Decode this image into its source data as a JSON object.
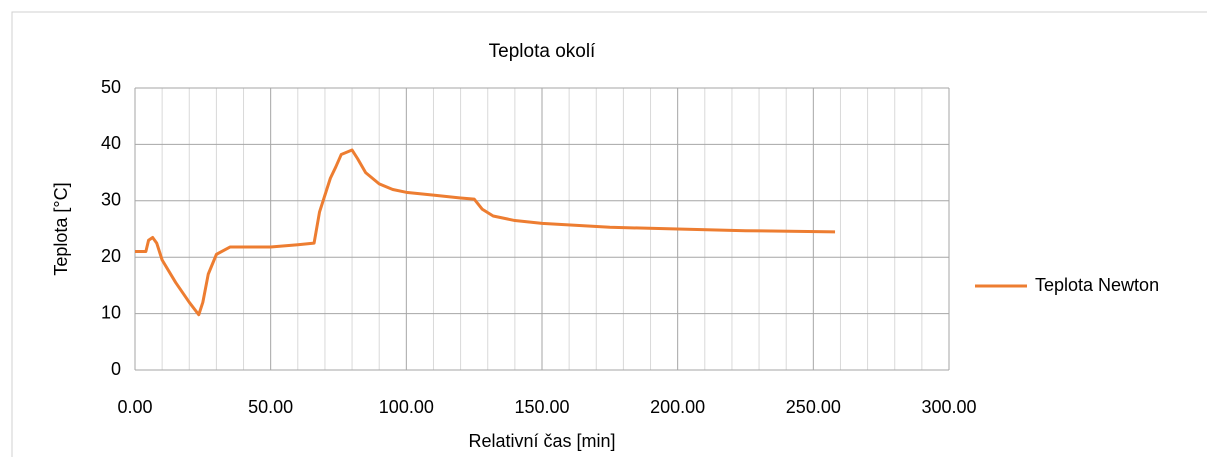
{
  "chart_data": {
    "type": "line",
    "title": "Teplota okolí",
    "x_label": "Relativní čas [min]",
    "y_label": "Teplota [°C]",
    "x": [
      0,
      4,
      5,
      6.5,
      8,
      10,
      15,
      20,
      23.5,
      25,
      27,
      30,
      35,
      40,
      50,
      60,
      66,
      68,
      72,
      74,
      76,
      80,
      82,
      85,
      90,
      95,
      100,
      110,
      120,
      125,
      128,
      132,
      140,
      150,
      175,
      200,
      225,
      258
    ],
    "series": [
      {
        "name": "Teplota Newton",
        "color": "#ed7d31",
        "values": [
          21,
          21,
          23,
          23.5,
          22.5,
          19.5,
          15.5,
          12,
          9.8,
          12,
          17,
          20.5,
          21.8,
          21.8,
          21.8,
          22.2,
          22.5,
          28,
          34,
          36,
          38.2,
          39,
          37.5,
          35,
          33,
          32,
          31.5,
          31,
          30.5,
          30.3,
          28.5,
          27.3,
          26.5,
          26,
          25.3,
          25,
          24.7,
          24.5
        ]
      }
    ],
    "xlim": [
      0,
      300
    ],
    "xticks": [
      {
        "value": 0,
        "label": "0.00"
      },
      {
        "value": 50,
        "label": "50.00"
      },
      {
        "value": 100,
        "label": "100.00"
      },
      {
        "value": 150,
        "label": "150.00"
      },
      {
        "value": 200,
        "label": "200.00"
      },
      {
        "value": 250,
        "label": "250.00"
      },
      {
        "value": 300,
        "label": "300.00"
      }
    ],
    "xminor": [
      10,
      20,
      30,
      40,
      60,
      70,
      80,
      90,
      110,
      120,
      130,
      140,
      160,
      170,
      180,
      190,
      210,
      220,
      230,
      240,
      260,
      270,
      280,
      290
    ],
    "ylim": [
      0,
      50
    ],
    "yticks": [
      0,
      10,
      20,
      30,
      40,
      50
    ],
    "grid": true,
    "legend": "right"
  }
}
